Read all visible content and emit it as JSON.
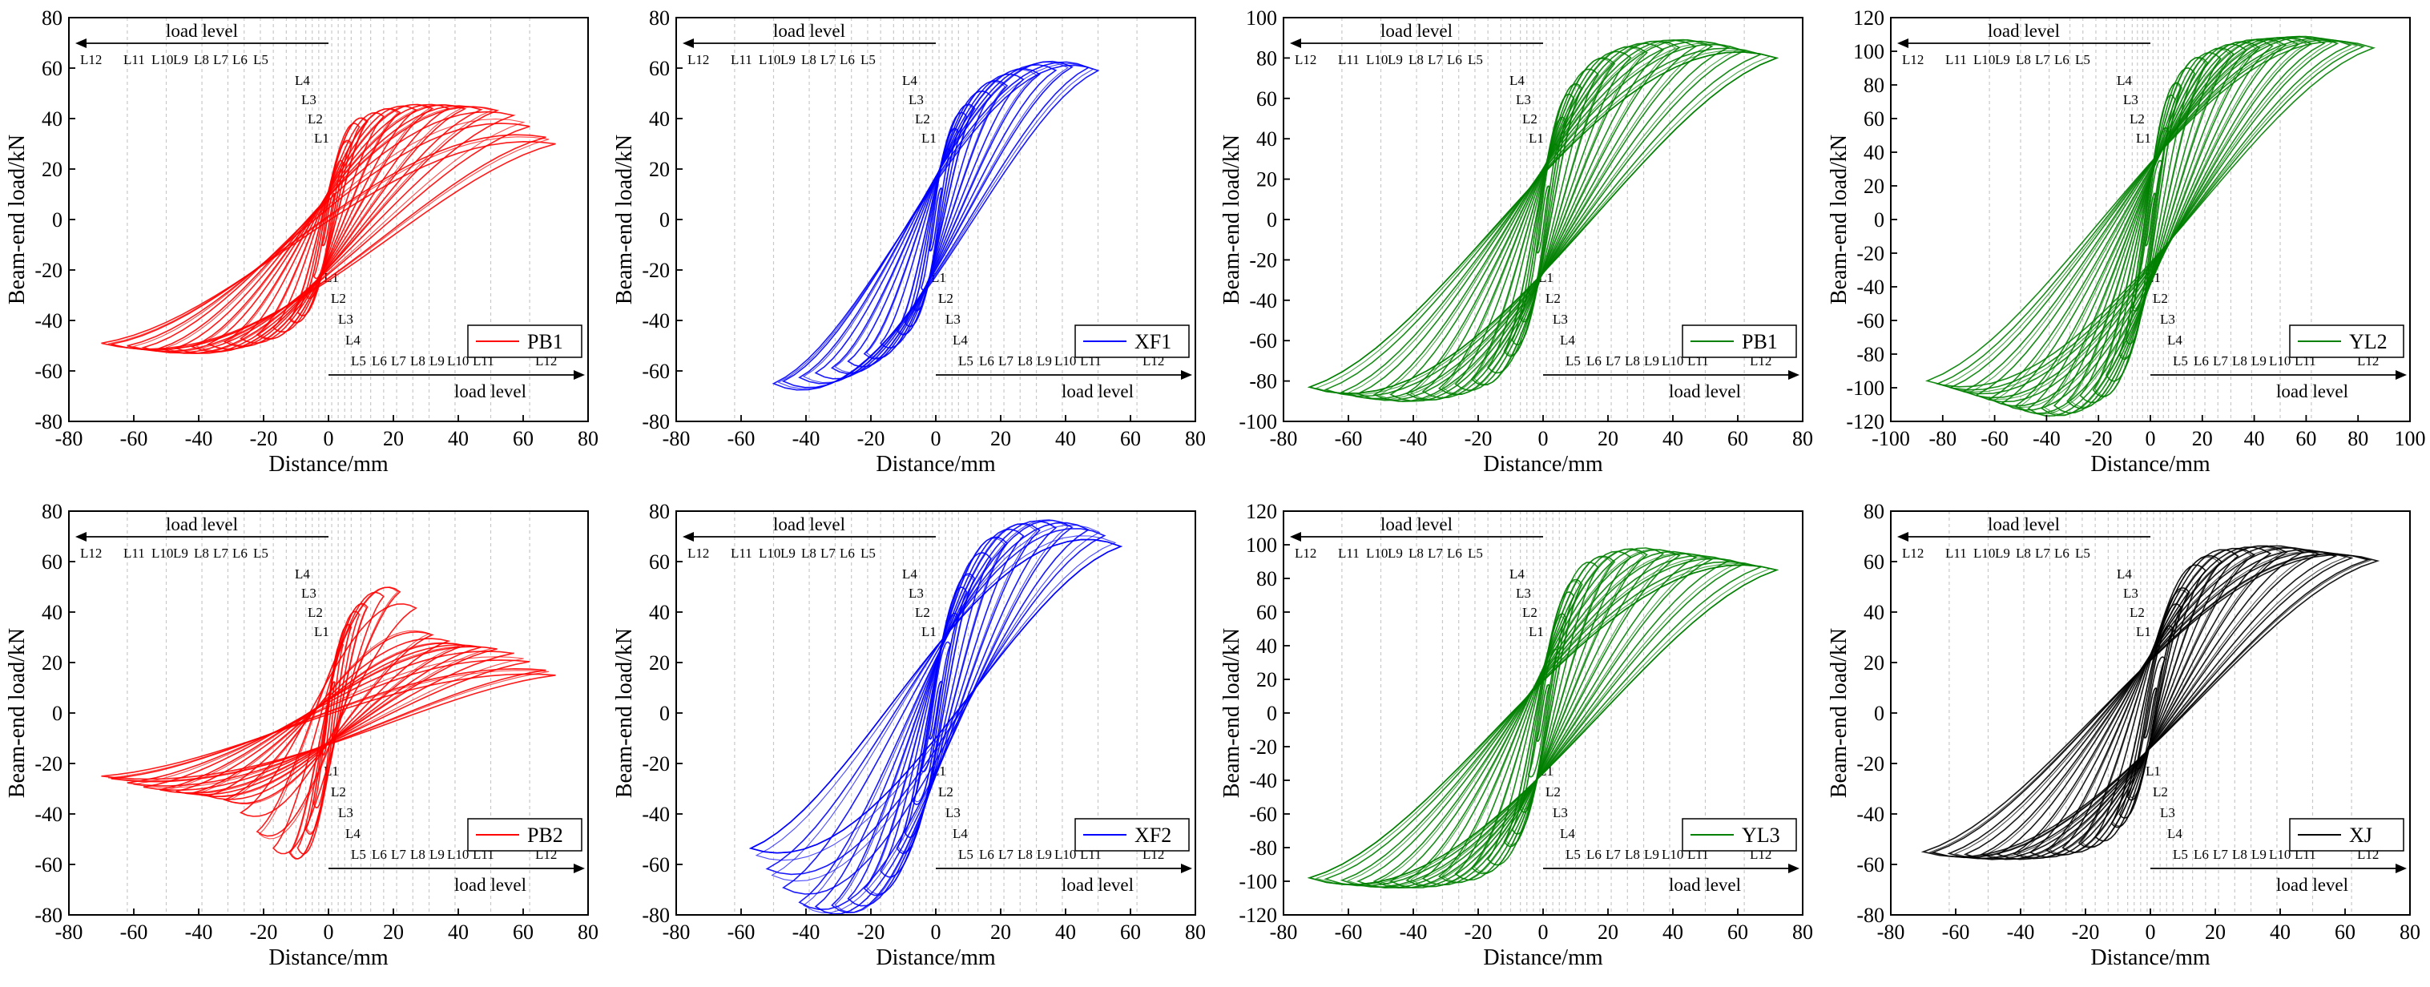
{
  "chart_data": [
    {
      "type": "line",
      "legend": "PB1",
      "color": "#ff0000",
      "xlabel": "Distance/mm",
      "ylabel": "Beam-end load/kN",
      "xlim": [
        -80,
        80
      ],
      "ylim": [
        -80,
        80
      ],
      "xticks": [
        "-80",
        "-60",
        "-40",
        "-20",
        "0",
        "20",
        "40",
        "60",
        "80"
      ],
      "yticks": [
        "-80",
        "-60",
        "-40",
        "-20",
        "0",
        "20",
        "40",
        "60",
        "80"
      ],
      "load_level_title": "load level",
      "load_levels": [
        "L1",
        "L2",
        "L3",
        "L4",
        "L5",
        "L6",
        "L7",
        "L8",
        "L9",
        "L10",
        "L11",
        "L12"
      ],
      "envelope": {
        "x": [
          -70,
          -55,
          -45,
          -30,
          -20,
          -10,
          -5,
          0,
          5,
          10,
          20,
          30,
          40,
          55,
          70
        ],
        "y": [
          -49,
          -51,
          -51,
          -48,
          -45,
          -38,
          -25,
          0,
          25,
          38,
          42,
          44,
          44,
          43,
          30
        ]
      }
    },
    {
      "type": "line",
      "legend": "XF1",
      "color": "#0000ff",
      "xlabel": "Distance/mm",
      "ylabel": "Beam-end load/kN",
      "xlim": [
        -80,
        80
      ],
      "ylim": [
        -80,
        80
      ],
      "xticks": [
        "-80",
        "-60",
        "-40",
        "-20",
        "0",
        "20",
        "40",
        "60",
        "80"
      ],
      "yticks": [
        "-80",
        "-60",
        "-40",
        "-20",
        "0",
        "20",
        "40",
        "60",
        "80"
      ],
      "load_level_title": "load level",
      "load_levels": [
        "L1",
        "L2",
        "L3",
        "L4",
        "L5",
        "L6",
        "L7",
        "L8",
        "L9",
        "L10",
        "L11",
        "L12"
      ],
      "envelope": {
        "x": [
          -58,
          -50,
          -40,
          -30,
          -20,
          -10,
          -5,
          0,
          5,
          10,
          20,
          30,
          40,
          45,
          50
        ],
        "y": [
          -67,
          -65,
          -62,
          -58,
          -52,
          -42,
          -30,
          0,
          30,
          42,
          52,
          57,
          60,
          61,
          59
        ]
      }
    },
    {
      "type": "line",
      "legend": "PB1",
      "color": "#008000",
      "xlabel": "Distance/mm",
      "ylabel": "Beam-end load/kN",
      "xlim": [
        -80,
        80
      ],
      "ylim": [
        -100,
        100
      ],
      "xticks": [
        "-80",
        "-60",
        "-40",
        "-20",
        "0",
        "20",
        "40",
        "60",
        "80"
      ],
      "yticks": [
        "-100",
        "-80",
        "-60",
        "-40",
        "-20",
        "0",
        "20",
        "40",
        "60",
        "80",
        "100"
      ],
      "load_level_title": "load level",
      "load_levels": [
        "L1",
        "L2",
        "L3",
        "L4",
        "L5",
        "L6",
        "L7",
        "L8",
        "L9",
        "L10",
        "L11",
        "L12"
      ],
      "envelope": {
        "x": [
          -72,
          -60,
          -50,
          -40,
          -30,
          -20,
          -10,
          -5,
          0,
          5,
          10,
          20,
          30,
          40,
          50,
          58,
          72
        ],
        "y": [
          -83,
          -86,
          -87,
          -86,
          -83,
          -78,
          -62,
          -40,
          0,
          40,
          62,
          76,
          82,
          85,
          86,
          85,
          80
        ]
      }
    },
    {
      "type": "line",
      "legend": "YL2",
      "color": "#008000",
      "xlabel": "Distance/mm",
      "ylabel": "Beam-end load/kN",
      "xlim": [
        -100,
        100
      ],
      "ylim": [
        -120,
        120
      ],
      "xticks": [
        "-100",
        "-80",
        "-60",
        "-40",
        "-20",
        "0",
        "20",
        "40",
        "60",
        "80",
        "100"
      ],
      "yticks": [
        "-120",
        "-100",
        "-80",
        "-60",
        "-40",
        "-20",
        "0",
        "20",
        "40",
        "60",
        "80",
        "100",
        "120"
      ],
      "load_level_title": "load level",
      "load_levels": [
        "L1",
        "L2",
        "L3",
        "L4",
        "L5",
        "L6",
        "L7",
        "L8",
        "L9",
        "L10",
        "L11",
        "L12"
      ],
      "envelope": {
        "x": [
          -88,
          -70,
          -55,
          -45,
          -35,
          -20,
          -10,
          0,
          10,
          20,
          35,
          45,
          55,
          70,
          86
        ],
        "y": [
          -95,
          -103,
          -110,
          -113,
          -110,
          -100,
          -75,
          0,
          75,
          92,
          100,
          103,
          104,
          105,
          102
        ]
      }
    },
    {
      "type": "line",
      "legend": "PB2",
      "color": "#ff0000",
      "xlabel": "Distance/mm",
      "ylabel": "Beam-end load/kN",
      "xlim": [
        -80,
        80
      ],
      "ylim": [
        -80,
        80
      ],
      "xticks": [
        "-80",
        "-60",
        "-40",
        "-20",
        "0",
        "20",
        "40",
        "60",
        "80"
      ],
      "yticks": [
        "-80",
        "-60",
        "-40",
        "-20",
        "0",
        "20",
        "40",
        "60",
        "80"
      ],
      "load_level_title": "load level",
      "load_levels": [
        "L1",
        "L2",
        "L3",
        "L4",
        "L5",
        "L6",
        "L7",
        "L8",
        "L9",
        "L10",
        "L11",
        "L12"
      ],
      "envelope": {
        "x": [
          -70,
          -55,
          -40,
          -30,
          -20,
          -15,
          -10,
          -5,
          0,
          5,
          10,
          15,
          20,
          25,
          30,
          40,
          55,
          70
        ],
        "y": [
          -25,
          -30,
          -32,
          -35,
          -50,
          -56,
          -55,
          -40,
          0,
          30,
          40,
          45,
          48,
          48,
          32,
          27,
          25,
          15
        ]
      }
    },
    {
      "type": "line",
      "legend": "XF2",
      "color": "#0000ff",
      "xlabel": "Distance/mm",
      "ylabel": "Beam-end load/kN",
      "xlim": [
        -80,
        80
      ],
      "ylim": [
        -80,
        80
      ],
      "xticks": [
        "-80",
        "-60",
        "-40",
        "-20",
        "0",
        "20",
        "40",
        "60",
        "80"
      ],
      "yticks": [
        "-80",
        "-60",
        "-40",
        "-20",
        "0",
        "20",
        "40",
        "60",
        "80"
      ],
      "load_level_title": "load level",
      "load_levels": [
        "L1",
        "L2",
        "L3",
        "L4",
        "L5",
        "L6",
        "L7",
        "L8",
        "L9",
        "L10",
        "L11",
        "L12"
      ],
      "envelope": {
        "x": [
          -58,
          -50,
          -45,
          -40,
          -30,
          -20,
          -10,
          -5,
          0,
          5,
          10,
          20,
          30,
          40,
          50,
          57
        ],
        "y": [
          -52,
          -65,
          -72,
          -77,
          -76,
          -68,
          -50,
          -25,
          0,
          30,
          50,
          66,
          72,
          74,
          72,
          66
        ]
      }
    },
    {
      "type": "line",
      "legend": "YL3",
      "color": "#008000",
      "xlabel": "Distance/mm",
      "ylabel": "Beam-end load/kN",
      "xlim": [
        -80,
        80
      ],
      "ylim": [
        -120,
        120
      ],
      "xticks": [
        "-80",
        "-60",
        "-40",
        "-20",
        "0",
        "20",
        "40",
        "60",
        "80"
      ],
      "yticks": [
        "-120",
        "-100",
        "-80",
        "-60",
        "-40",
        "-20",
        "0",
        "20",
        "40",
        "60",
        "80",
        "100",
        "120"
      ],
      "load_level_title": "load level",
      "load_levels": [
        "L1",
        "L2",
        "L3",
        "L4",
        "L5",
        "L6",
        "L7",
        "L8",
        "L9",
        "L10",
        "L11",
        "L12"
      ],
      "envelope": {
        "x": [
          -72,
          -58,
          -45,
          -35,
          -25,
          -15,
          -8,
          0,
          8,
          15,
          25,
          35,
          45,
          58,
          72
        ],
        "y": [
          -98,
          -100,
          -100,
          -98,
          -95,
          -85,
          -65,
          0,
          65,
          85,
          92,
          95,
          93,
          90,
          85
        ]
      }
    },
    {
      "type": "line",
      "legend": "XJ",
      "color": "#000000",
      "xlabel": "Distance/mm",
      "ylabel": "Beam-end load/kN",
      "xlim": [
        -80,
        80
      ],
      "ylim": [
        -80,
        80
      ],
      "xticks": [
        "-80",
        "-60",
        "-40",
        "-20",
        "0",
        "20",
        "40",
        "60",
        "80"
      ],
      "yticks": [
        "-80",
        "-60",
        "-40",
        "-20",
        "0",
        "20",
        "40",
        "60",
        "80"
      ],
      "load_level_title": "load level",
      "load_levels": [
        "L1",
        "L2",
        "L3",
        "L4",
        "L5",
        "L6",
        "L7",
        "L8",
        "L9",
        "L10",
        "L11",
        "L12"
      ],
      "envelope": {
        "x": [
          -70,
          -58,
          -45,
          -35,
          -25,
          -15,
          -8,
          0,
          8,
          15,
          25,
          35,
          45,
          58,
          72
        ],
        "y": [
          -55,
          -56,
          -56,
          -55,
          -53,
          -48,
          -38,
          0,
          38,
          55,
          62,
          63,
          64,
          62,
          60
        ]
      }
    }
  ]
}
